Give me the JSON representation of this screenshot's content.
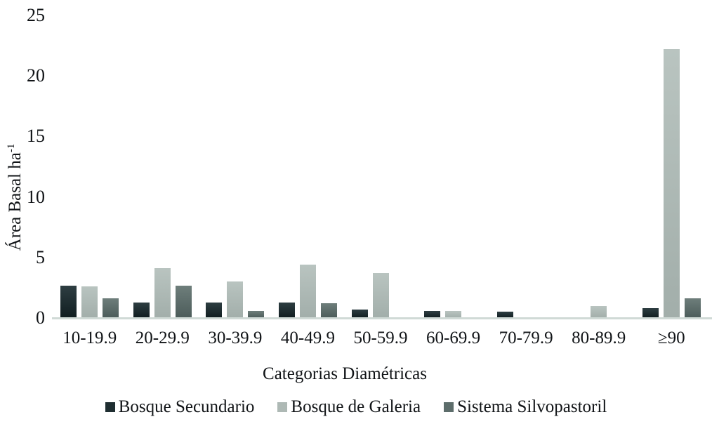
{
  "chart_data": {
    "type": "bar",
    "title": "",
    "xlabel": "Categorias Diamétricas",
    "ylabel": "Área Basal ha",
    "ylabel_superscript": "-1",
    "ylim": [
      0,
      25
    ],
    "yticks": [
      0,
      5,
      10,
      15,
      20,
      25
    ],
    "grid": "off",
    "legend_position": "bottom",
    "axis_line_color": "#d0dad6",
    "categories": [
      "10-19.9",
      "20-29.9",
      "30-39.9",
      "40-49.9",
      "50-59.9",
      "60-69.9",
      "70-79.9",
      "80-89.9",
      "≥90"
    ],
    "series": [
      {
        "name": "Bosque Secundario",
        "color": "#1f2e31",
        "color_top": "#2e3e42",
        "color_bottom": "#101d20",
        "values": [
          2.7,
          1.3,
          1.3,
          1.3,
          0.7,
          0.6,
          0.5,
          0,
          0.8
        ]
      },
      {
        "name": "Bosque de Galeria",
        "color": "#aeb9b5",
        "color_top": "#b9c4c0",
        "color_bottom": "#a2aeaa",
        "values": [
          2.6,
          4.1,
          3.0,
          4.4,
          3.7,
          0.6,
          0,
          1.0,
          22.2
        ]
      },
      {
        "name": "Sistema Silvopastoril",
        "color": "#5d6d6b",
        "color_top": "#6e7e7b",
        "color_bottom": "#4c5c5a",
        "values": [
          1.6,
          2.7,
          0.6,
          1.2,
          0,
          0,
          0,
          0,
          1.6
        ]
      }
    ]
  }
}
